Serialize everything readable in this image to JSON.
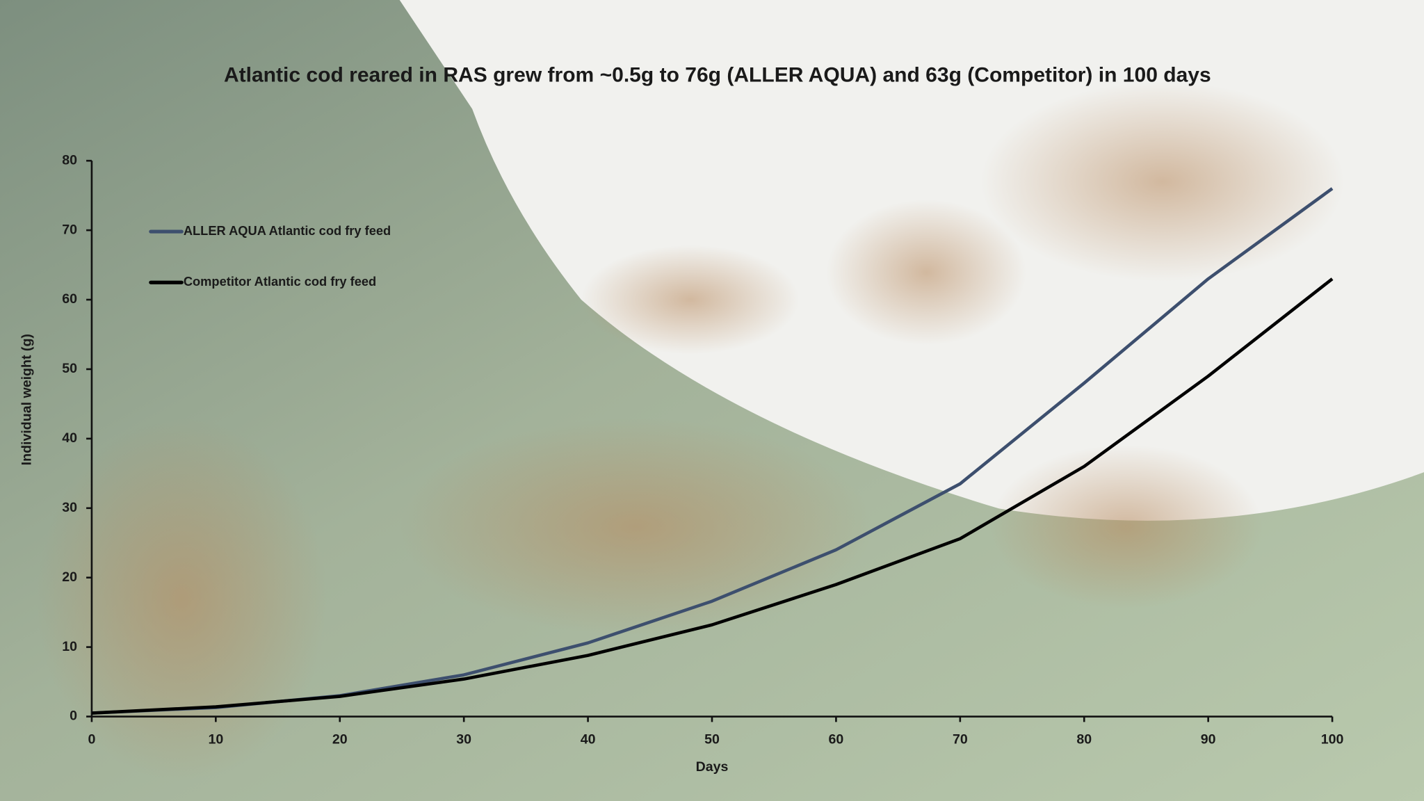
{
  "chart_data": {
    "type": "line",
    "title": "Atlantic cod reared in RAS grew from ~0.5g to 76g (ALLER AQUA) and 63g (Competitor) in 100 days",
    "x_label": "Days",
    "y_label": "Individual weight (g)",
    "x": [
      0,
      10,
      20,
      30,
      40,
      50,
      60,
      70,
      80,
      90,
      100
    ],
    "series": [
      {
        "name": "ALLER AQUA Atlantic cod fry feed",
        "color": "#3d4f6e",
        "values": [
          0.5,
          1.3,
          3,
          6,
          10.6,
          16.6,
          24,
          33.5,
          48,
          63,
          76
        ]
      },
      {
        "name": "Competitor Atlantic cod fry feed",
        "color": "#000000",
        "values": [
          0.5,
          1.4,
          2.9,
          5.4,
          8.8,
          13.2,
          19,
          25.6,
          36,
          49,
          63
        ]
      }
    ],
    "xlim": [
      0,
      100
    ],
    "ylim": [
      0,
      80
    ],
    "xticks": [
      0,
      10,
      20,
      30,
      40,
      50,
      60,
      70,
      80,
      90,
      100
    ],
    "yticks": [
      0,
      10,
      20,
      30,
      40,
      50,
      60,
      70,
      80
    ],
    "legend": "upper-left"
  }
}
